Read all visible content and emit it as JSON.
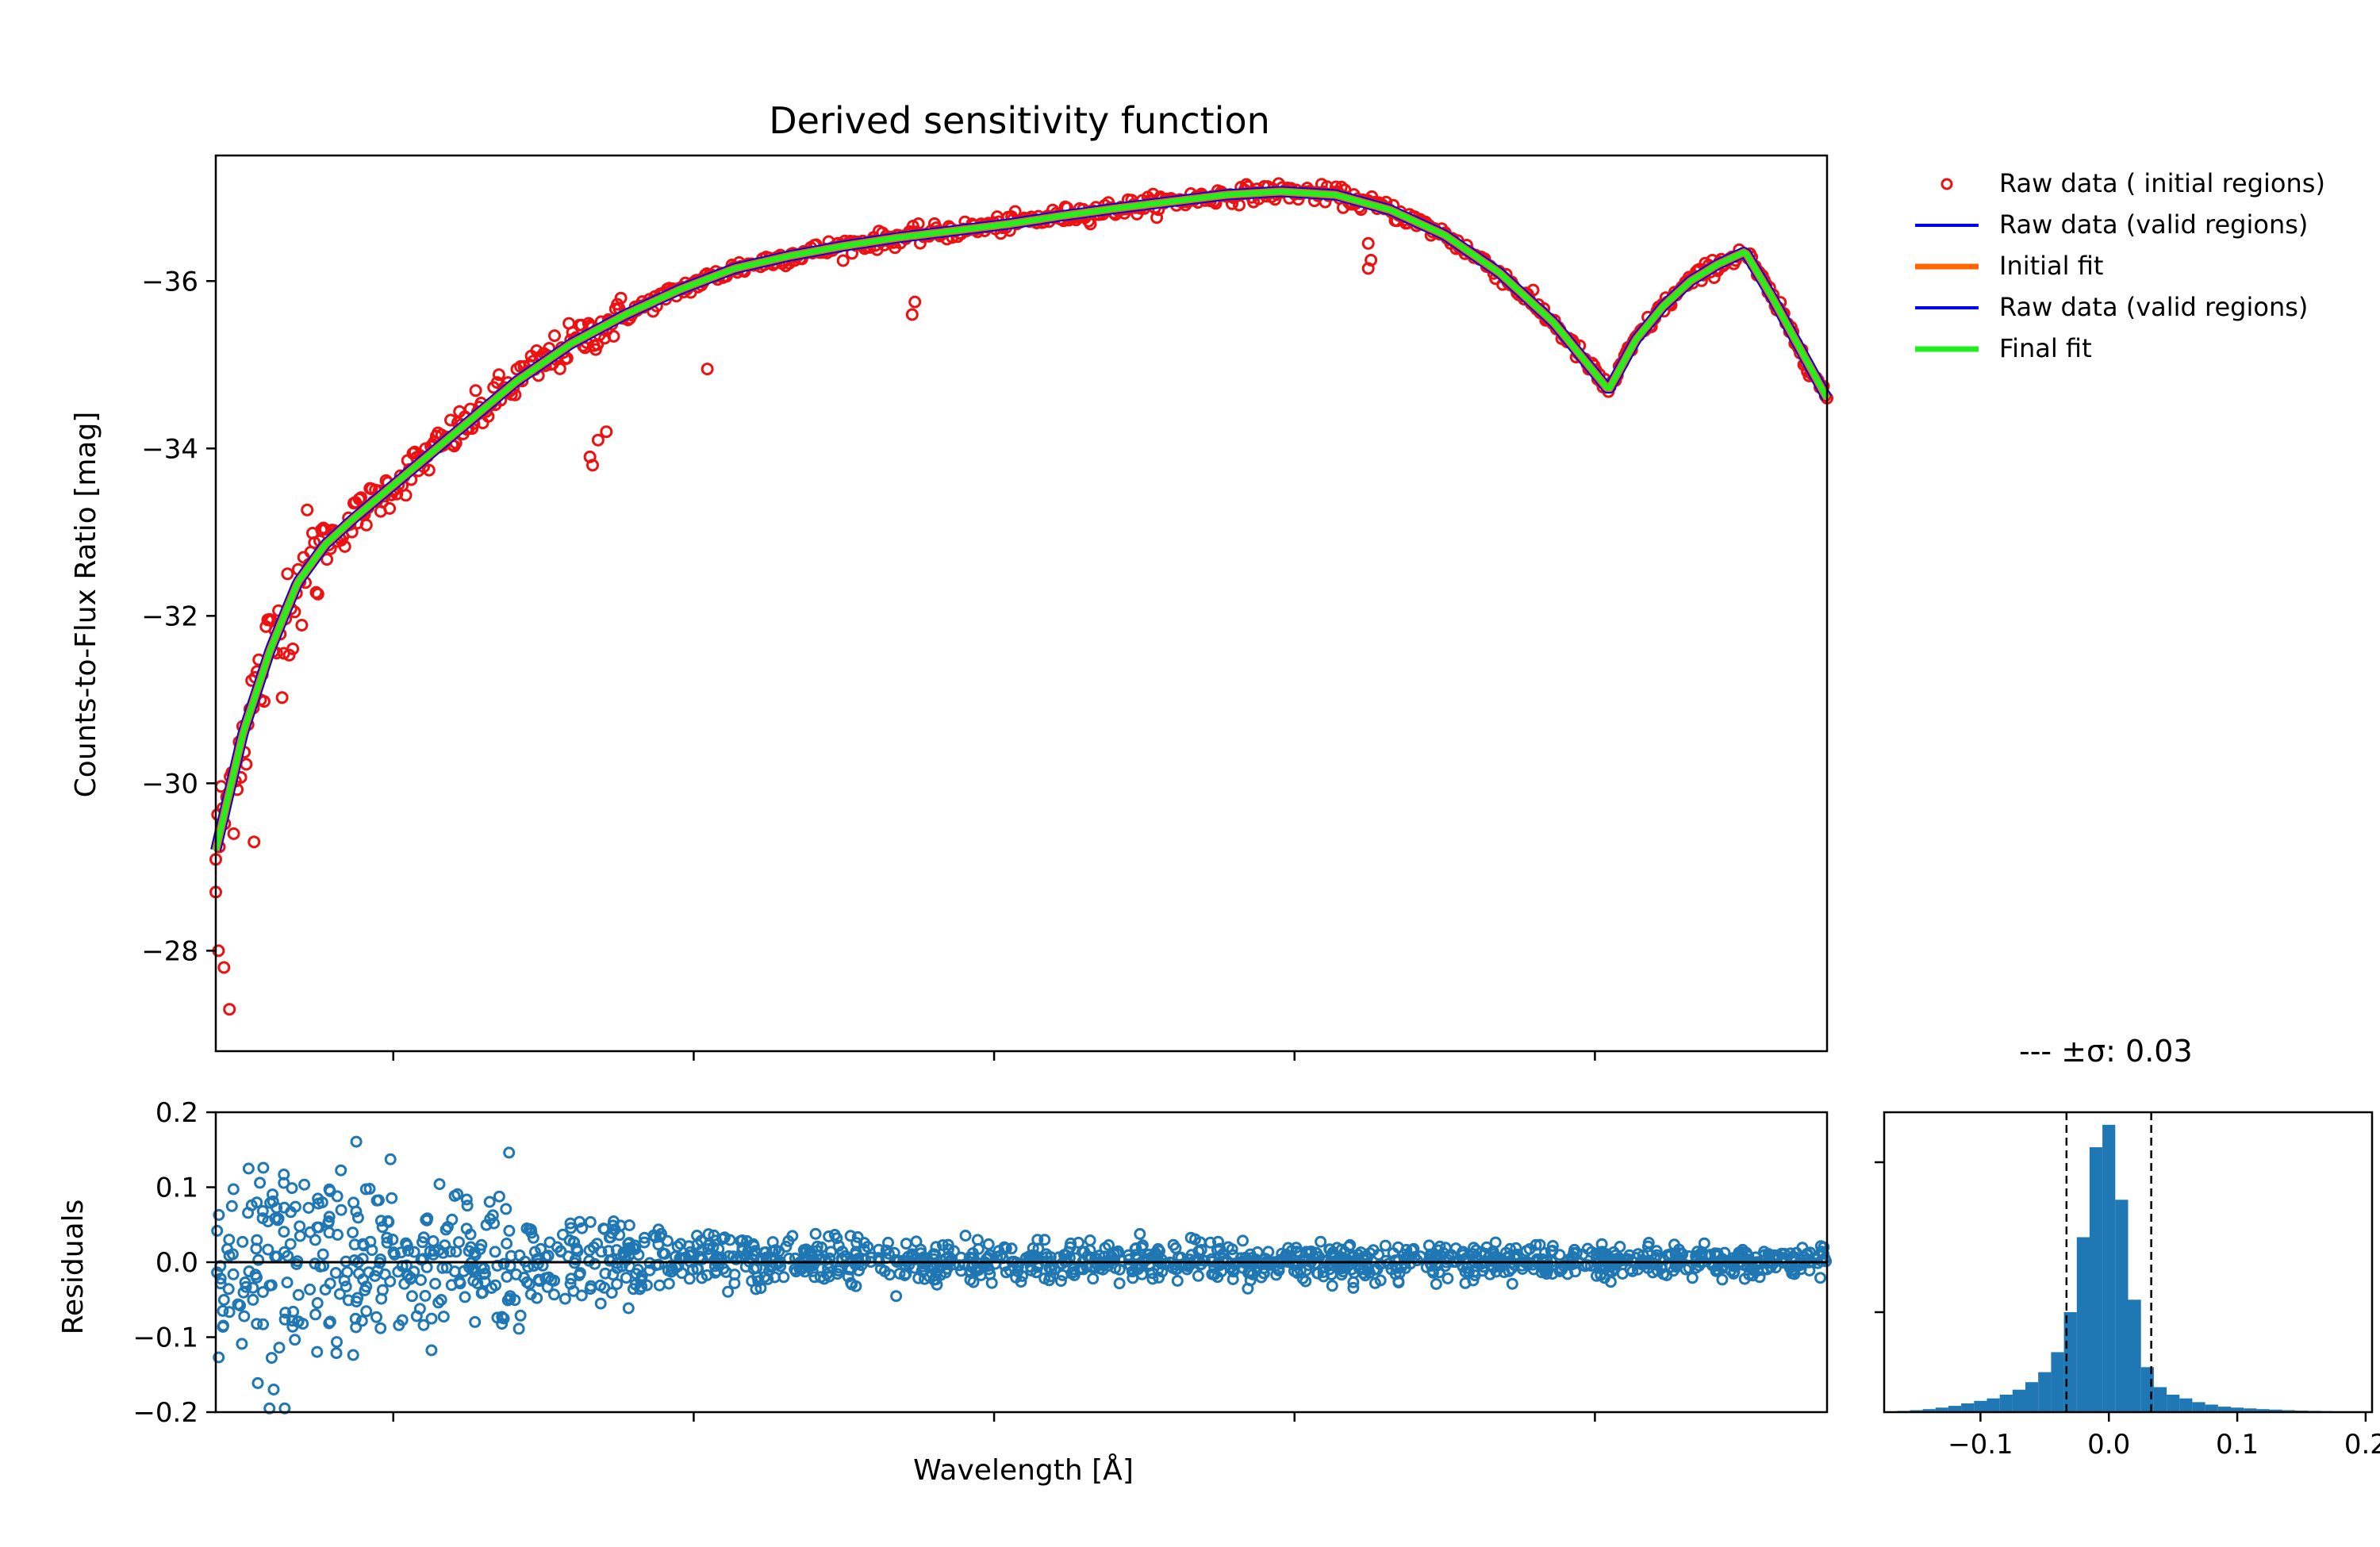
{
  "chart_data": [
    {
      "type": "line",
      "title": "Derived sensitivity function",
      "xlabel": "",
      "ylabel": "Counts-to-Flux Ratio [mag]",
      "x": [
        3500,
        3600,
        3700,
        3800,
        3900,
        4000,
        4200,
        4400,
        4600,
        4800,
        5000,
        5200,
        5400,
        5600,
        5800,
        6000,
        6200,
        6400,
        6600,
        6800,
        7000,
        7200,
        7400,
        7600,
        7800,
        8000,
        8200,
        8400,
        8600,
        8700,
        8800,
        8900,
        9000,
        9100,
        9200,
        9300,
        9400
      ],
      "xlim": [
        3500,
        9400
      ],
      "ylim": [
        26.8,
        37.5
      ],
      "y_inverted": true,
      "yticks": [
        -36,
        -34,
        -32,
        -30,
        -28
      ],
      "xtick_positions": [
        4150,
        5250,
        6350,
        7450,
        8550
      ],
      "xticks_labeled": false,
      "legend": {
        "placement": "outside upper right",
        "entries": [
          "Raw data ( initial regions)",
          "Raw data (valid regions)",
          "Initial fit",
          "Raw data (valid regions)",
          "Final fit"
        ]
      },
      "series": [
        {
          "name": "Final fit",
          "color": "#22ee22",
          "values": [
            29.2,
            30.6,
            31.6,
            32.4,
            32.85,
            33.15,
            33.7,
            34.25,
            34.8,
            35.25,
            35.6,
            35.9,
            36.15,
            36.3,
            36.42,
            36.52,
            36.6,
            36.68,
            36.78,
            36.87,
            36.95,
            37.03,
            37.07,
            37.03,
            36.85,
            36.55,
            36.1,
            35.5,
            34.7,
            35.3,
            35.7,
            36.0,
            36.2,
            36.35,
            35.8,
            35.2,
            34.6
          ]
        },
        {
          "name": "Initial fit",
          "color": "#ff6600"
        },
        {
          "name": "Raw data (valid regions)",
          "color": "#0000ee"
        },
        {
          "name": "Raw data ( initial regions)",
          "color": "#ee1111",
          "marker": "open-circle"
        }
      ],
      "outliers": [
        {
          "x": 3500,
          "y": 28.7
        },
        {
          "x": 3510,
          "y": 28.0
        },
        {
          "x": 3530,
          "y": 27.8
        },
        {
          "x": 3550,
          "y": 27.3
        },
        {
          "x": 3640,
          "y": 29.3
        },
        {
          "x": 4870,
          "y": 33.9
        },
        {
          "x": 4880,
          "y": 33.8
        },
        {
          "x": 4900,
          "y": 34.1
        },
        {
          "x": 4930,
          "y": 34.2
        },
        {
          "x": 5300,
          "y": 34.95
        },
        {
          "x": 6050,
          "y": 35.6
        },
        {
          "x": 6060,
          "y": 35.75
        },
        {
          "x": 7720,
          "y": 36.15
        },
        {
          "x": 7730,
          "y": 36.25
        },
        {
          "x": 7720,
          "y": 36.45
        }
      ]
    },
    {
      "type": "scatter",
      "title": "",
      "xlabel": "Wavelength [Å]",
      "ylabel": "Residuals",
      "xlim": [
        3500,
        9400
      ],
      "ylim": [
        -0.2,
        0.2
      ],
      "yticks": [
        -0.2,
        -0.1,
        0.0,
        0.1,
        0.2
      ],
      "ytick_labels": [
        "−0.2",
        "−0.1",
        "0.0",
        "0.1",
        "0.2"
      ],
      "zero_line": true,
      "series": [
        {
          "name": "",
          "color": "#1f77b4",
          "marker": "open-circle",
          "scatter_envelope": {
            "x": [
              3500,
              4000,
              4500,
              5000,
              5500,
              6000,
              6500,
              7000,
              7500,
              8000,
              8500,
              9000,
              9400
            ],
            "sigma": [
              0.07,
              0.07,
              0.05,
              0.025,
              0.018,
              0.015,
              0.012,
              0.012,
              0.012,
              0.012,
              0.01,
              0.01,
              0.01
            ]
          }
        }
      ]
    },
    {
      "type": "bar",
      "title": "",
      "xlabel": "",
      "ylabel": "",
      "histogram": true,
      "color": "#1f77b4",
      "xlim": [
        -0.175,
        0.205
      ],
      "xticks": [
        -0.1,
        0.0,
        0.1,
        0.2
      ],
      "xtick_labels": [
        "−0.1",
        "0.0",
        "0.1",
        "0.2"
      ],
      "ylim": [
        0,
        1200
      ],
      "bin_centers": [
        -0.16,
        -0.15,
        -0.14,
        -0.13,
        -0.12,
        -0.11,
        -0.1,
        -0.09,
        -0.08,
        -0.07,
        -0.06,
        -0.05,
        -0.04,
        -0.03,
        -0.02,
        -0.01,
        0.0,
        0.01,
        0.02,
        0.03,
        0.04,
        0.05,
        0.06,
        0.07,
        0.08,
        0.09,
        0.1,
        0.11,
        0.12,
        0.13,
        0.14,
        0.15,
        0.16,
        0.17,
        0.18,
        0.19
      ],
      "values": [
        5,
        8,
        12,
        18,
        25,
        35,
        45,
        55,
        70,
        90,
        120,
        160,
        240,
        400,
        700,
        1060,
        1150,
        850,
        450,
        180,
        100,
        70,
        55,
        40,
        30,
        22,
        18,
        15,
        12,
        10,
        8,
        6,
        5,
        4,
        3,
        2
      ],
      "sigma_lines": [
        -0.033,
        0.033
      ],
      "sigma_label": "---   ±σ: 0.03"
    }
  ]
}
